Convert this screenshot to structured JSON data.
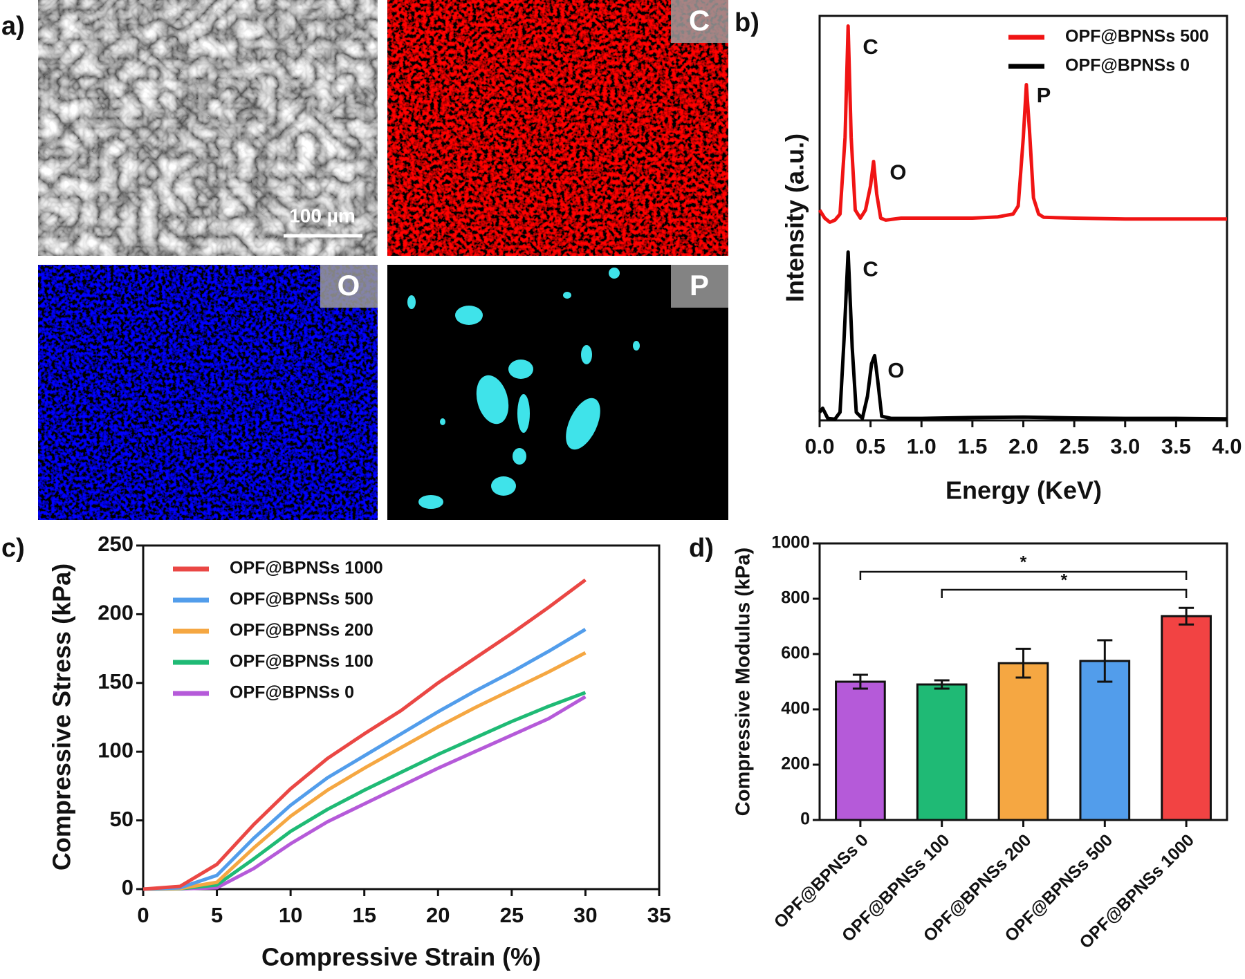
{
  "images": {
    "panel_label": "a)",
    "element_labels": [
      "C",
      "O",
      "P"
    ],
    "scale_bar": "100 µm"
  },
  "chart_data": [
    {
      "type": "spectrum",
      "panel_label": "b)",
      "x_label": "Energy (KeV)",
      "y_label": "Intensity (a.u.)",
      "xlim": [
        0,
        4
      ],
      "xticks": [
        {
          "value": 0,
          "label": "0.0"
        },
        0.5,
        {
          "value": 1,
          "label": "1.0"
        },
        1.5,
        {
          "value": 2,
          "label": "2.0"
        },
        2.5,
        {
          "value": 3,
          "label": "3.0"
        },
        3.5,
        {
          "value": 4,
          "label": "4.0"
        }
      ],
      "ylim": [
        0,
        100
      ],
      "series": [
        {
          "name": "OPF@BPNSs 500",
          "color": "#f01414",
          "x": [
            0,
            0.05,
            0.1,
            0.15,
            0.2,
            0.25,
            0.28,
            0.31,
            0.35,
            0.4,
            0.45,
            0.5,
            0.53,
            0.56,
            0.6,
            0.65,
            0.8,
            1.0,
            1.5,
            1.75,
            1.9,
            1.95,
            2.0,
            2.03,
            2.06,
            2.1,
            2.15,
            2.2,
            2.5,
            3.0,
            3.5,
            4.0
          ],
          "values": [
            52,
            50,
            49,
            49.5,
            51,
            70,
            97.5,
            70,
            52,
            50,
            52,
            58,
            64,
            56,
            50,
            49.5,
            50,
            50,
            50,
            50.3,
            51,
            53,
            70,
            83,
            72,
            55,
            51,
            50.2,
            50,
            49.8,
            49.8,
            49.8
          ]
        },
        {
          "name": "OPF@BPNSs 0",
          "color": "#000000",
          "x": [
            0,
            0.03,
            0.08,
            0.15,
            0.2,
            0.24,
            0.28,
            0.32,
            0.36,
            0.42,
            0.47,
            0.51,
            0.54,
            0.57,
            0.61,
            0.7,
            1.0,
            1.5,
            2.0,
            2.5,
            3.0,
            3.5,
            4.0
          ],
          "values": [
            2,
            3,
            0.5,
            0.3,
            2,
            20,
            41.6,
            18,
            2,
            0.5,
            6,
            14,
            16,
            10,
            1,
            0.5,
            0.5,
            0.7,
            0.8,
            0.6,
            0.5,
            0.5,
            0.4
          ]
        }
      ],
      "annotations": [
        "C",
        "O",
        "P",
        "C",
        "O"
      ],
      "legend": "upper right"
    },
    {
      "type": "line",
      "panel_label": "c)",
      "x_label": "Compressive Strain (%)",
      "y_label": "Compressive Stress (kPa)",
      "xlim": [
        0,
        35
      ],
      "xticks": [
        0,
        5,
        10,
        15,
        20,
        25,
        30,
        35
      ],
      "ylim": [
        0,
        250
      ],
      "yticks": [
        0,
        50,
        100,
        150,
        200,
        250
      ],
      "x": [
        0,
        2.5,
        5,
        7.5,
        10,
        12.5,
        15,
        17.5,
        20,
        22.5,
        25,
        27.5,
        30
      ],
      "series": [
        {
          "name": "OPF@BPNSs 1000",
          "color": "#ea4744",
          "values": [
            0,
            2,
            18,
            47,
            73,
            95,
            113,
            130,
            150,
            168,
            186,
            205,
            225
          ]
        },
        {
          "name": "OPF@BPNSs 500",
          "color": "#529deb",
          "values": [
            0,
            1,
            10,
            37,
            61,
            81,
            97,
            113,
            129,
            144,
            158,
            173,
            189
          ]
        },
        {
          "name": "OPF@BPNSs 200",
          "color": "#f5a742",
          "values": [
            0,
            0.5,
            5,
            30,
            53,
            72,
            88,
            103,
            118,
            132,
            145,
            158,
            172
          ]
        },
        {
          "name": "OPF@BPNSs 100",
          "color": "#1fba75",
          "values": [
            0,
            0.3,
            3,
            22,
            42,
            58,
            72,
            85,
            98,
            110,
            122,
            133,
            143
          ]
        },
        {
          "name": "OPF@BPNSs 0",
          "color": "#b55ad9",
          "values": [
            0,
            0.2,
            1,
            15,
            33,
            49,
            62,
            75,
            88,
            100,
            112,
            124,
            140
          ]
        }
      ],
      "legend": "upper left"
    },
    {
      "type": "bar",
      "panel_label": "d)",
      "y_label": "Compressive Modulus (kPa)",
      "ylim": [
        0,
        1000
      ],
      "yticks": [
        0,
        200,
        400,
        600,
        800,
        1000
      ],
      "categories": [
        "OPF@BPNSs 0",
        "OPF@BPNSs 100",
        "OPF@BPNSs 200",
        "OPF@BPNSs 500",
        "OPF@BPNSs 1000"
      ],
      "values": [
        500,
        490,
        567,
        575,
        737
      ],
      "errors": [
        25,
        15,
        52,
        75,
        30
      ],
      "colors": [
        "#b55ad9",
        "#1fba75",
        "#f5a742",
        "#529deb",
        "#f24343"
      ],
      "significance": [
        {
          "pair": [
            0,
            4
          ],
          "label": "*"
        },
        {
          "pair": [
            1,
            4
          ],
          "label": "*"
        }
      ]
    }
  ]
}
